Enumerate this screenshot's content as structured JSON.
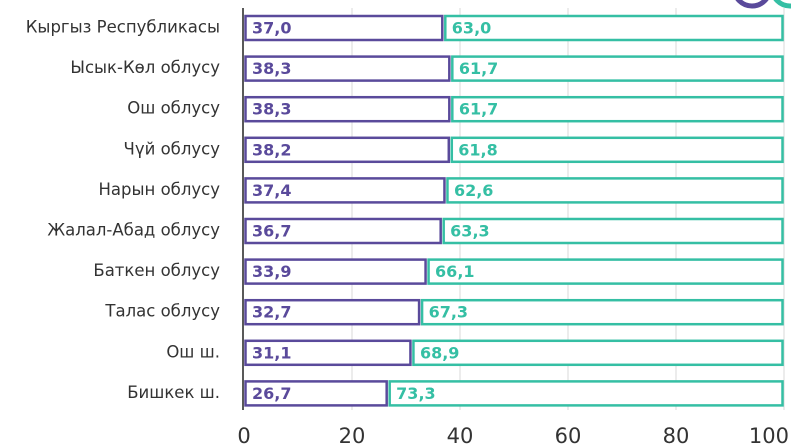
{
  "chart_data": {
    "type": "stacked-bar-horizontal",
    "categories": [
      "Кыргыз Республикасы",
      "Ысык-Көл облусу",
      "Ош облусу",
      "Чүй облусу",
      "Нарын облусу",
      "Жалал-Абад облусу",
      "Баткен облусу",
      "Талас облусу",
      "Ош ш.",
      "Бишкек ш."
    ],
    "series": [
      {
        "color": "#5a4a9b",
        "values": [
          37.0,
          38.3,
          38.3,
          38.2,
          37.4,
          36.7,
          33.9,
          32.7,
          31.1,
          26.7
        ],
        "value_labels": [
          "37,0",
          "38,3",
          "38,3",
          "38,2",
          "37,4",
          "36,7",
          "33,9",
          "32,7",
          "31,1",
          "26,7"
        ]
      },
      {
        "color": "#35bfa4",
        "values": [
          63.0,
          61.7,
          61.7,
          61.8,
          62.6,
          63.3,
          66.1,
          67.3,
          68.9,
          73.3
        ],
        "value_labels": [
          "63,0",
          "61,7",
          "61,7",
          "61,8",
          "62,6",
          "63,3",
          "66,1",
          "67,3",
          "68,9",
          "73,3"
        ]
      }
    ],
    "xlim": [
      0,
      100
    ],
    "xticks": [
      0,
      20,
      40,
      60,
      80,
      100
    ],
    "grid": true
  }
}
